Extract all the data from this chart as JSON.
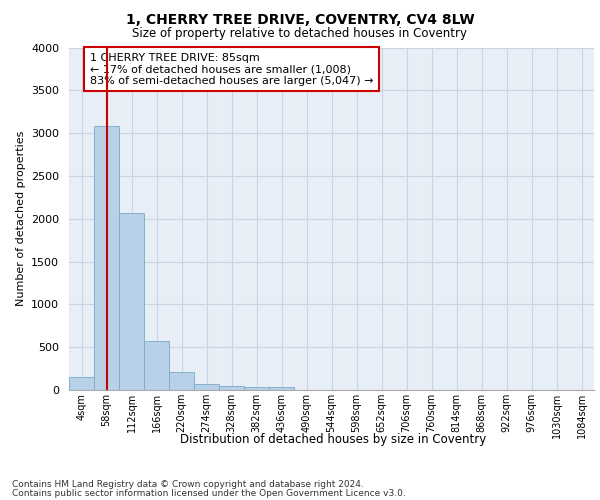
{
  "title1": "1, CHERRY TREE DRIVE, COVENTRY, CV4 8LW",
  "title2": "Size of property relative to detached houses in Coventry",
  "xlabel": "Distribution of detached houses by size in Coventry",
  "ylabel": "Number of detached properties",
  "bar_labels": [
    "4sqm",
    "58sqm",
    "112sqm",
    "166sqm",
    "220sqm",
    "274sqm",
    "328sqm",
    "382sqm",
    "436sqm",
    "490sqm",
    "544sqm",
    "598sqm",
    "652sqm",
    "706sqm",
    "760sqm",
    "814sqm",
    "868sqm",
    "922sqm",
    "976sqm",
    "1030sqm",
    "1084sqm"
  ],
  "bar_values": [
    150,
    3080,
    2070,
    570,
    210,
    75,
    45,
    40,
    35,
    0,
    0,
    0,
    0,
    0,
    0,
    0,
    0,
    0,
    0,
    0,
    0
  ],
  "bar_color": "#b8d0e8",
  "bar_edge_color": "#7aaac8",
  "grid_color": "#c8d4e4",
  "background_color": "#e8eef6",
  "vline_color": "#cc0000",
  "vline_pos": 1.4,
  "annotation_text": "1 CHERRY TREE DRIVE: 85sqm\n← 17% of detached houses are smaller (1,008)\n83% of semi-detached houses are larger (5,047) →",
  "annotation_box_color": "#cc0000",
  "ylim": [
    0,
    4000
  ],
  "yticks": [
    0,
    500,
    1000,
    1500,
    2000,
    2500,
    3000,
    3500,
    4000
  ],
  "footer1": "Contains HM Land Registry data © Crown copyright and database right 2024.",
  "footer2": "Contains public sector information licensed under the Open Government Licence v3.0."
}
